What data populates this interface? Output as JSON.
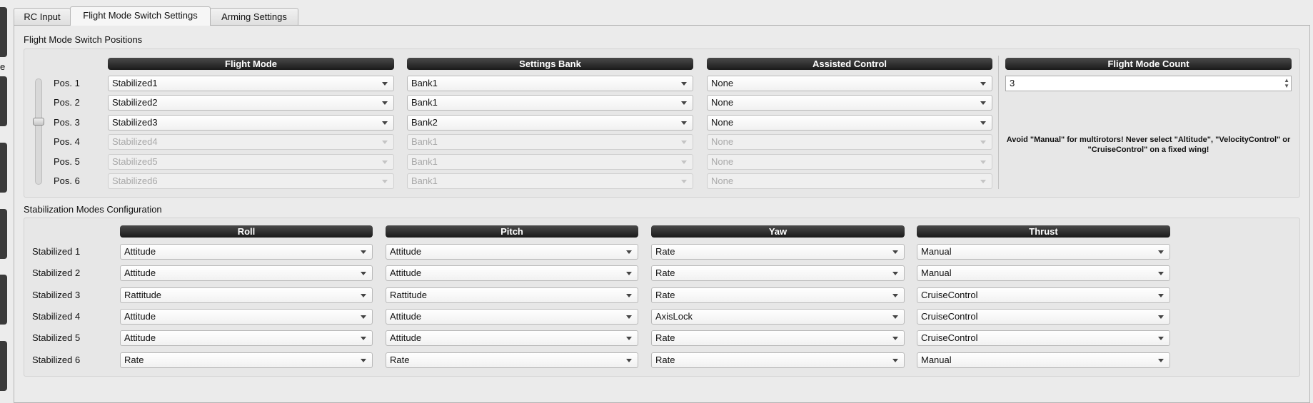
{
  "tabs": [
    {
      "label": "RC Input",
      "active": false
    },
    {
      "label": "Flight Mode Switch Settings",
      "active": true
    },
    {
      "label": "Arming Settings",
      "active": false
    }
  ],
  "side_partial_text": "e",
  "switch_positions": {
    "title": "Flight Mode Switch Positions",
    "headers": {
      "flight_mode": "Flight Mode",
      "settings_bank": "Settings Bank",
      "assisted_control": "Assisted Control",
      "flight_mode_count": "Flight Mode Count"
    },
    "slider_position": 3,
    "rows": [
      {
        "label": "Pos. 1",
        "flight_mode": "Stabilized1",
        "bank": "Bank1",
        "assisted": "None",
        "enabled": true
      },
      {
        "label": "Pos. 2",
        "flight_mode": "Stabilized2",
        "bank": "Bank1",
        "assisted": "None",
        "enabled": true
      },
      {
        "label": "Pos. 3",
        "flight_mode": "Stabilized3",
        "bank": "Bank2",
        "assisted": "None",
        "enabled": true
      },
      {
        "label": "Pos. 4",
        "flight_mode": "Stabilized4",
        "bank": "Bank1",
        "assisted": "None",
        "enabled": false
      },
      {
        "label": "Pos. 5",
        "flight_mode": "Stabilized5",
        "bank": "Bank1",
        "assisted": "None",
        "enabled": false
      },
      {
        "label": "Pos. 6",
        "flight_mode": "Stabilized6",
        "bank": "Bank1",
        "assisted": "None",
        "enabled": false
      }
    ],
    "flight_mode_count": "3",
    "warning": "Avoid \"Manual\" for multirotors! Never select \"Altitude\", \"VelocityControl\" or \"CruiseControl\" on a fixed wing!"
  },
  "stabilization": {
    "title": "Stabilization Modes Configuration",
    "headers": {
      "roll": "Roll",
      "pitch": "Pitch",
      "yaw": "Yaw",
      "thrust": "Thrust"
    },
    "rows": [
      {
        "label": "Stabilized 1",
        "roll": "Attitude",
        "pitch": "Attitude",
        "yaw": "Rate",
        "thrust": "Manual"
      },
      {
        "label": "Stabilized 2",
        "roll": "Attitude",
        "pitch": "Attitude",
        "yaw": "Rate",
        "thrust": "Manual"
      },
      {
        "label": "Stabilized 3",
        "roll": "Rattitude",
        "pitch": "Rattitude",
        "yaw": "Rate",
        "thrust": "CruiseControl"
      },
      {
        "label": "Stabilized 4",
        "roll": "Attitude",
        "pitch": "Attitude",
        "yaw": "AxisLock",
        "thrust": "CruiseControl"
      },
      {
        "label": "Stabilized 5",
        "roll": "Attitude",
        "pitch": "Attitude",
        "yaw": "Rate",
        "thrust": "CruiseControl"
      },
      {
        "label": "Stabilized 6",
        "roll": "Rate",
        "pitch": "Rate",
        "yaw": "Rate",
        "thrust": "Manual"
      }
    ]
  }
}
